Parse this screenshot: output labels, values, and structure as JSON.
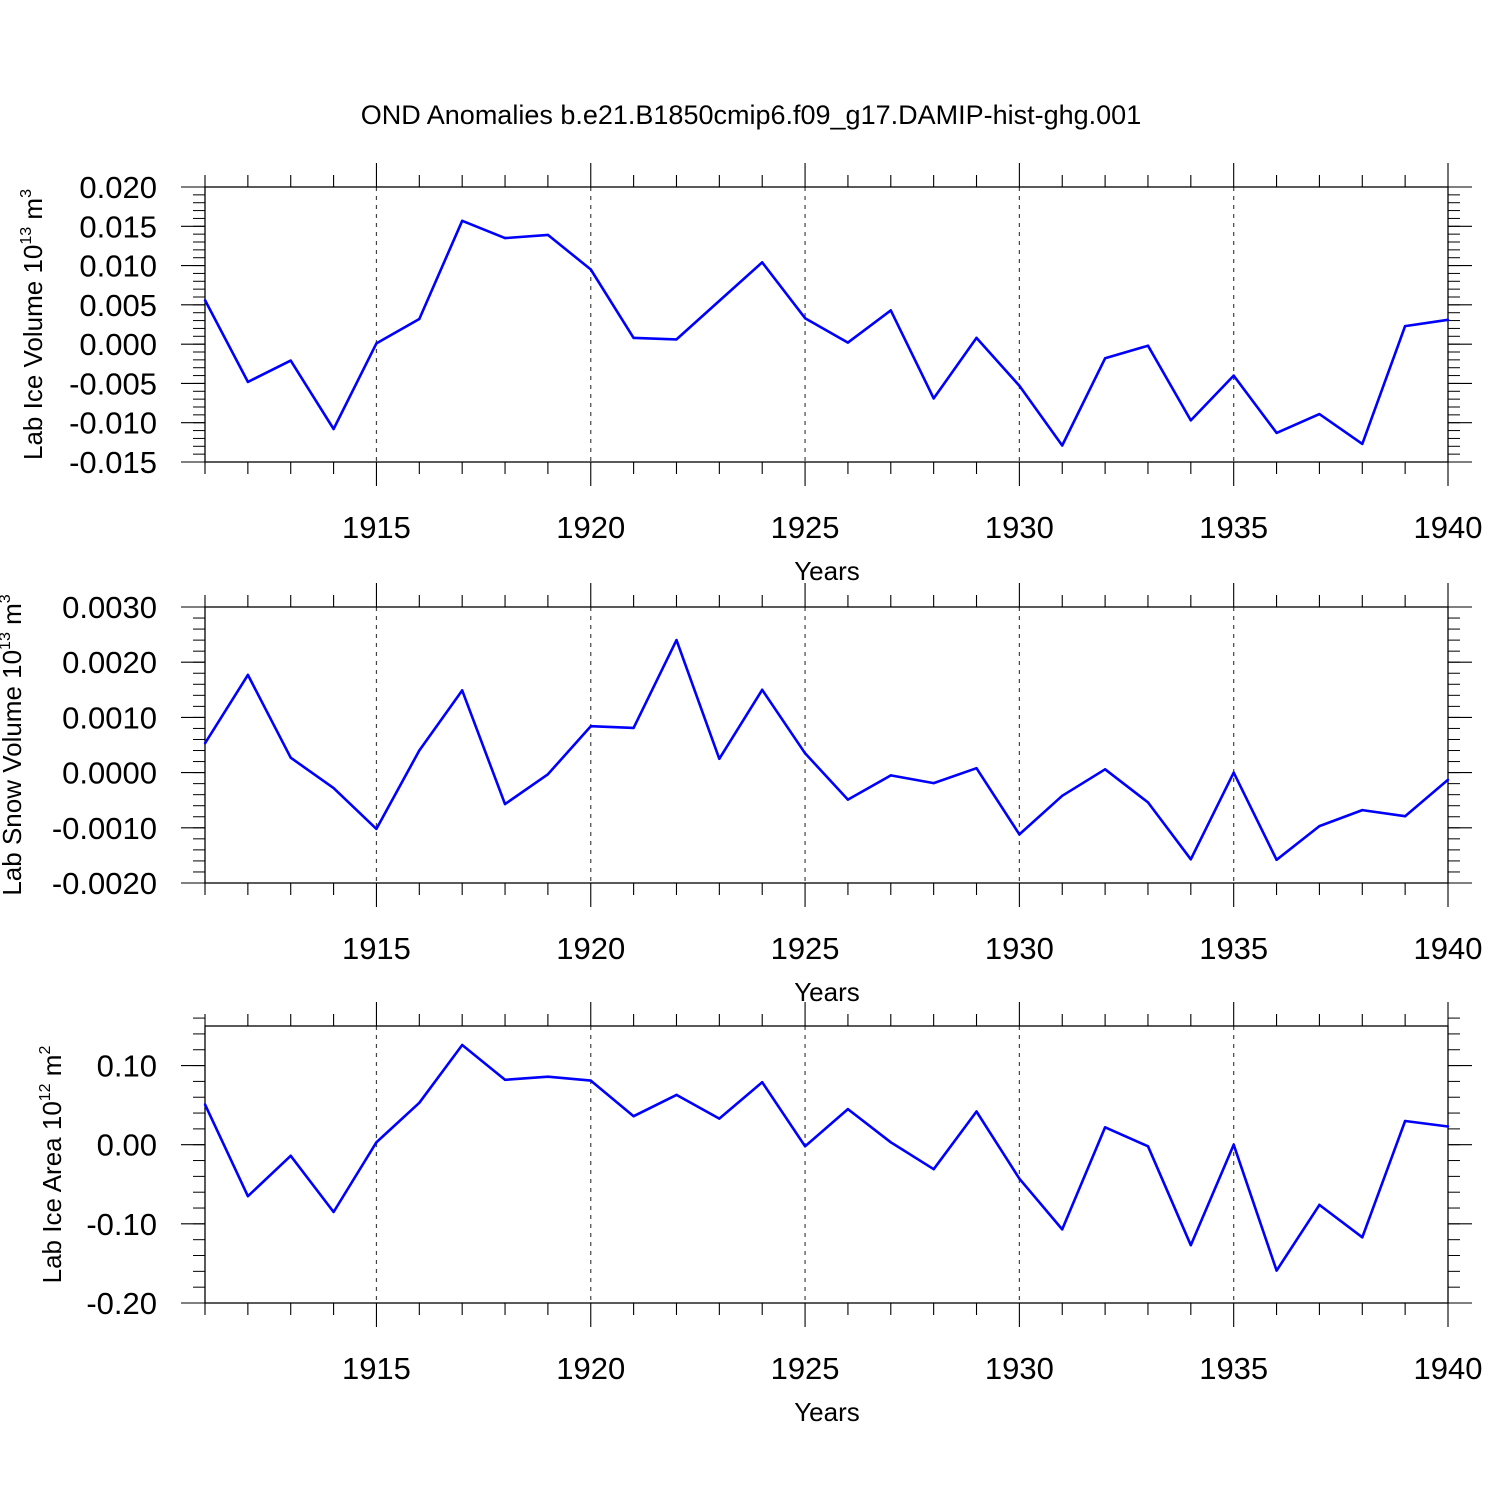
{
  "title": "OND Anomalies b.e21.B1850cmip6.f09_g17.DAMIP-hist-ghg.001",
  "chart_data": [
    {
      "type": "line",
      "ylabel": "Lab Ice Volume 10",
      "ylabel_sup": "13",
      "ylabel_unit": " m",
      "ylabel_unit_sup": "3",
      "xlabel": "Years",
      "xlim": [
        1911,
        1940
      ],
      "ylim": [
        -0.015,
        0.02
      ],
      "xticks": [
        1915,
        1920,
        1925,
        1930,
        1935,
        1940
      ],
      "yticks": [
        -0.015,
        -0.01,
        -0.005,
        0.0,
        0.005,
        0.01,
        0.015,
        0.02
      ],
      "ytick_labels": [
        "-0.015",
        "-0.010",
        "-0.005",
        "0.000",
        "0.005",
        "0.010",
        "0.015",
        "0.020"
      ],
      "yminor_step": 0.001,
      "grid": "vertical dashed at major x ticks",
      "color": "#0000ff",
      "x": [
        1911,
        1912,
        1913,
        1914,
        1915,
        1916,
        1917,
        1918,
        1919,
        1920,
        1921,
        1922,
        1923,
        1924,
        1925,
        1926,
        1927,
        1928,
        1929,
        1930,
        1931,
        1932,
        1933,
        1934,
        1935,
        1936,
        1937,
        1938,
        1939,
        1940
      ],
      "values": [
        0.0056,
        -0.0048,
        -0.0021,
        -0.0108,
        0.0001,
        0.0032,
        0.0157,
        0.0135,
        0.0139,
        0.0095,
        0.0008,
        0.0006,
        0.0055,
        0.0104,
        0.0033,
        0.0002,
        0.0043,
        -0.0069,
        0.0008,
        -0.0053,
        -0.0129,
        -0.0018,
        -0.0002,
        -0.0097,
        -0.004,
        -0.0113,
        -0.0089,
        -0.0127,
        0.0023,
        0.0031
      ]
    },
    {
      "type": "line",
      "ylabel": "Lab Snow Volume 10",
      "ylabel_sup": "13",
      "ylabel_unit": " m",
      "ylabel_unit_sup": "3",
      "xlabel": "Years",
      "xlim": [
        1911,
        1940
      ],
      "ylim": [
        -0.002,
        0.003
      ],
      "xticks": [
        1915,
        1920,
        1925,
        1930,
        1935,
        1940
      ],
      "yticks": [
        -0.002,
        -0.001,
        0.0,
        0.001,
        0.002,
        0.003
      ],
      "ytick_labels": [
        "-0.0020",
        "-0.0010",
        "0.0000",
        "0.0010",
        "0.0020",
        "0.0030"
      ],
      "yminor_step": 0.0002,
      "grid": "vertical dashed at major x ticks",
      "color": "#0000ff",
      "x": [
        1911,
        1912,
        1913,
        1914,
        1915,
        1916,
        1917,
        1918,
        1919,
        1920,
        1921,
        1922,
        1923,
        1924,
        1925,
        1926,
        1927,
        1928,
        1929,
        1930,
        1931,
        1932,
        1933,
        1934,
        1935,
        1936,
        1937,
        1938,
        1939,
        1940
      ],
      "values": [
        0.00053,
        0.00177,
        0.00027,
        -0.00028,
        -0.00102,
        0.0004,
        0.00149,
        -0.00057,
        -3e-05,
        0.00084,
        0.00081,
        0.0024,
        0.00025,
        0.0015,
        0.00035,
        -0.00049,
        -5e-05,
        -0.00019,
        8e-05,
        -0.00112,
        -0.00042,
        6e-05,
        -0.00054,
        -0.00157,
        0.0,
        -0.00158,
        -0.00097,
        -0.00068,
        -0.00079,
        -0.00013
      ]
    },
    {
      "type": "line",
      "ylabel": "Lab Ice Area 10",
      "ylabel_sup": "12",
      "ylabel_unit": " m",
      "ylabel_unit_sup": "2",
      "xlabel": "Years",
      "xlim": [
        1911,
        1940
      ],
      "ylim": [
        -0.2,
        0.15
      ],
      "xticks": [
        1915,
        1920,
        1925,
        1930,
        1935,
        1940
      ],
      "yticks": [
        -0.2,
        -0.1,
        0.0,
        0.1
      ],
      "ytick_labels": [
        "-0.20",
        "-0.10",
        "0.00",
        "0.10"
      ],
      "yminor_step": 0.02,
      "grid": "vertical dashed at major x ticks",
      "color": "#0000ff",
      "x": [
        1911,
        1912,
        1913,
        1914,
        1915,
        1916,
        1917,
        1918,
        1919,
        1920,
        1921,
        1922,
        1923,
        1924,
        1925,
        1926,
        1927,
        1928,
        1929,
        1930,
        1931,
        1932,
        1933,
        1934,
        1935,
        1936,
        1937,
        1938,
        1939,
        1940
      ],
      "values": [
        0.051,
        -0.065,
        -0.014,
        -0.085,
        0.003,
        0.053,
        0.126,
        0.082,
        0.086,
        0.081,
        0.036,
        0.063,
        0.033,
        0.079,
        -0.002,
        0.045,
        0.003,
        -0.031,
        0.042,
        -0.043,
        -0.107,
        0.022,
        -0.002,
        -0.127,
        0.0,
        -0.159,
        -0.076,
        -0.117,
        0.03,
        0.023
      ]
    }
  ]
}
